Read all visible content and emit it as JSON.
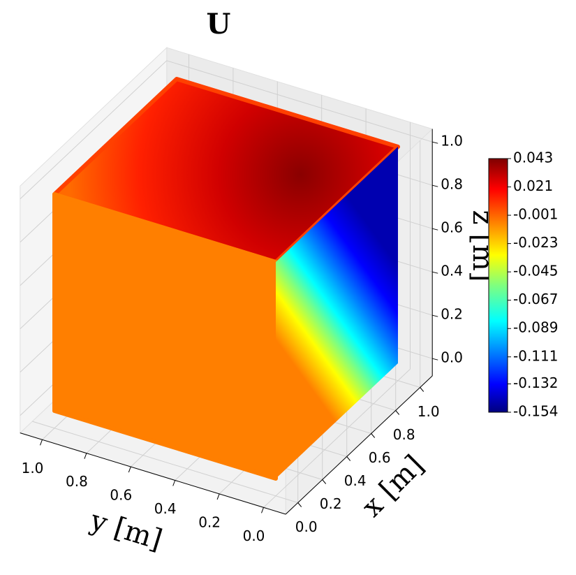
{
  "chart_data": {
    "type": "scatter3d",
    "title": "U",
    "xlabel": "x [m]",
    "ylabel": "y [m]",
    "zlabel": "z [m]",
    "xlim": [
      0,
      1
    ],
    "ylim": [
      0,
      1
    ],
    "zlim": [
      0,
      1
    ],
    "xticks": [
      {
        "value": 0,
        "label": "0.0"
      },
      0.2,
      0.4,
      0.6,
      0.8,
      {
        "value": 1,
        "label": "1.0"
      }
    ],
    "yticks": [
      {
        "value": 0,
        "label": "0.0"
      },
      0.2,
      0.4,
      0.6,
      0.8,
      {
        "value": 1,
        "label": "1.0"
      }
    ],
    "zticks": [
      {
        "value": 0,
        "label": "0.0"
      },
      0.2,
      0.4,
      0.6,
      0.8,
      {
        "value": 1,
        "label": "1.0"
      }
    ],
    "grid": true,
    "colorbar": {
      "colormap": "jet",
      "lim": [
        -0.154,
        0.043
      ],
      "ticks": [
        0.043,
        0.021,
        -0.001,
        -0.023,
        -0.045,
        -0.067,
        -0.089,
        -0.111,
        -0.132,
        -0.154
      ]
    }
  }
}
